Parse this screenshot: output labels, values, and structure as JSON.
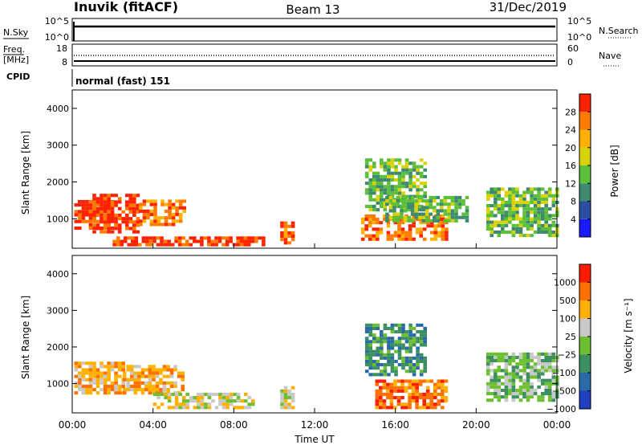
{
  "header": {
    "station": "Inuvik (fitACF)",
    "beam": "Beam 13",
    "date": "31/Dec/2019"
  },
  "sky_panel": {
    "left_label": "N.Sky",
    "left_ticks": [
      "10^5",
      "10^0"
    ],
    "right_label": "N.Search",
    "right_ticks": [
      "10^5",
      "10^0"
    ]
  },
  "freq_panel": {
    "left_label_line1": "Freq.",
    "left_label_line2": "[MHz]",
    "left_ticks": [
      "18",
      "8"
    ],
    "right_label": "Nave",
    "right_ticks": [
      "60",
      "0"
    ]
  },
  "cpid": {
    "label": "CPID",
    "value": "normal (fast) 151"
  },
  "x_axis": {
    "label": "Time UT",
    "ticks": [
      "00:00",
      "04:00",
      "08:00",
      "12:00",
      "16:00",
      "20:00",
      "00:00"
    ]
  },
  "power_panel": {
    "ylabel": "Slant Range [km]",
    "yticks": [
      "4000",
      "3000",
      "2000",
      "1000"
    ],
    "colorbar_label": "Power [dB]",
    "colorbar_ticks": [
      "28",
      "24",
      "20",
      "16",
      "12",
      "8",
      "4"
    ],
    "colors": [
      "#1a1aff",
      "#2b4f9e",
      "#3d8a6e",
      "#5bbf3a",
      "#d9d20a",
      "#ffb000",
      "#ff7a00",
      "#ff2200"
    ]
  },
  "velocity_panel": {
    "ylabel": "Slant Range [km]",
    "yticks": [
      "4000",
      "3000",
      "2000",
      "1000"
    ],
    "colorbar_label": "Velocity [m s⁻¹]",
    "colorbar_ticks": [
      "1000",
      "500",
      "100",
      "25",
      "−25",
      "−100",
      "−500",
      "−1000"
    ],
    "colors": [
      "#2040c0",
      "#2a6aa8",
      "#3c8f60",
      "#6cc030",
      "#c8c8c8",
      "#ffb000",
      "#ff7000",
      "#ff1a00"
    ]
  },
  "chart_data": {
    "type": "heatmap",
    "x_range_hours": [
      0,
      24
    ],
    "y_range_km": [
      200,
      4500
    ],
    "power_regions": [
      {
        "t0": 0.1,
        "t1": 2.0,
        "r0": 700,
        "r1": 1500,
        "level": 7
      },
      {
        "t0": 1.0,
        "t1": 3.2,
        "r0": 600,
        "r1": 1600,
        "level": 7
      },
      {
        "t0": 3.3,
        "t1": 5.5,
        "r0": 800,
        "r1": 1500,
        "level": 6
      },
      {
        "t0": 2.0,
        "t1": 9.5,
        "r0": 250,
        "r1": 500,
        "level": 7
      },
      {
        "t0": 10.3,
        "t1": 10.9,
        "r0": 300,
        "r1": 900,
        "level": 6
      },
      {
        "t0": 14.3,
        "t1": 18.5,
        "r0": 400,
        "r1": 1100,
        "level": 6
      },
      {
        "t0": 14.5,
        "t1": 17.5,
        "r0": 1200,
        "r1": 2600,
        "level": 3
      },
      {
        "t0": 20.5,
        "t1": 24.0,
        "r0": 500,
        "r1": 1800,
        "level": 3
      },
      {
        "t0": 15.5,
        "t1": 19.5,
        "r0": 900,
        "r1": 1600,
        "level": 3
      }
    ],
    "velocity_regions": [
      {
        "t0": 0.1,
        "t1": 2.5,
        "r0": 700,
        "r1": 1600,
        "level": 5
      },
      {
        "t0": 2.5,
        "t1": 5.5,
        "r0": 700,
        "r1": 1500,
        "level": 5
      },
      {
        "t0": 4.0,
        "t1": 9.0,
        "r0": 300,
        "r1": 700,
        "level": 4
      },
      {
        "t0": 10.3,
        "t1": 10.9,
        "r0": 300,
        "r1": 900,
        "level": 4
      },
      {
        "t0": 15.0,
        "t1": 18.5,
        "r0": 300,
        "r1": 1100,
        "level": 6
      },
      {
        "t0": 14.5,
        "t1": 17.5,
        "r0": 1200,
        "r1": 2600,
        "level": 2
      },
      {
        "t0": 20.5,
        "t1": 24.0,
        "r0": 500,
        "r1": 1800,
        "level": 3
      }
    ]
  }
}
